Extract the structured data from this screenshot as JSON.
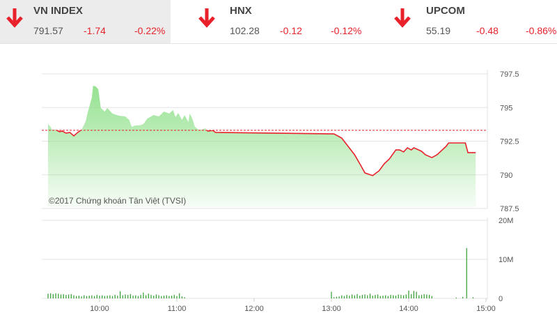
{
  "indices": [
    {
      "name": "VN INDEX",
      "value": "791.57",
      "change": "-1.74",
      "percent": "-0.22%",
      "direction": "down",
      "selected": true
    },
    {
      "name": "HNX",
      "value": "102.28",
      "change": "-0.12",
      "percent": "-0.12%",
      "direction": "down",
      "selected": false
    },
    {
      "name": "UPCOM",
      "value": "55.19",
      "change": "-0.48",
      "percent": "-0.86%",
      "direction": "down",
      "selected": false
    }
  ],
  "colors": {
    "down": "#e8212a",
    "line": "#e8212a",
    "fill": "#8fe08a",
    "volume": "#2e9a2e",
    "reference": "#e8212a"
  },
  "chart_data": [
    {
      "type": "line",
      "title": "",
      "watermark": "©2017 Chứng khoán Tân Việt (TVSI)",
      "reference": 793.31,
      "ylim": [
        787.5,
        797.5
      ],
      "yticks": [
        "797.5",
        "795",
        "792.5",
        "790",
        "787.5"
      ],
      "ytick_values": [
        797.5,
        795,
        792.5,
        790,
        787.5
      ],
      "xlim": [
        "09:15",
        "15:00"
      ],
      "grid": true,
      "points": [
        [
          "09:20",
          793.77
        ],
        [
          "09:22",
          793.56
        ],
        [
          "09:23",
          793.35
        ],
        [
          "09:26",
          793.35
        ],
        [
          "09:29",
          793.2
        ],
        [
          "09:31",
          793.25
        ],
        [
          "09:34",
          793.1
        ],
        [
          "09:37",
          793.15
        ],
        [
          "09:40",
          792.89
        ],
        [
          "09:43",
          793.15
        ],
        [
          "09:46",
          793.35
        ],
        [
          "09:49",
          793.92
        ],
        [
          "09:51",
          794.7
        ],
        [
          "09:54",
          795.74
        ],
        [
          "09:55",
          796.62
        ],
        [
          "09:57",
          796.57
        ],
        [
          "09:59",
          796.36
        ],
        [
          "10:01",
          794.97
        ],
        [
          "10:04",
          794.7
        ],
        [
          "10:06",
          794.97
        ],
        [
          "10:10",
          794.55
        ],
        [
          "10:15",
          794.39
        ],
        [
          "10:20",
          794.34
        ],
        [
          "10:23",
          794.08
        ],
        [
          "10:25",
          793.56
        ],
        [
          "10:28",
          793.67
        ],
        [
          "10:31",
          793.67
        ],
        [
          "10:34",
          793.77
        ],
        [
          "10:37",
          794.18
        ],
        [
          "10:42",
          794.44
        ],
        [
          "10:46",
          794.34
        ],
        [
          "10:50",
          794.7
        ],
        [
          "10:54",
          794.55
        ],
        [
          "10:57",
          794.81
        ],
        [
          "10:59",
          794.29
        ],
        [
          "11:01",
          794.6
        ],
        [
          "11:04",
          794.08
        ],
        [
          "11:06",
          794.44
        ],
        [
          "11:09",
          793.92
        ],
        [
          "11:10",
          794.55
        ],
        [
          "11:12",
          794.18
        ],
        [
          "11:14",
          793.56
        ],
        [
          "11:17",
          793.35
        ],
        [
          "11:19",
          793.35
        ],
        [
          "11:22",
          793.46
        ],
        [
          "11:24",
          793.25
        ],
        [
          "11:28",
          793.3
        ],
        [
          "11:30",
          793.15
        ],
        [
          "13:02",
          793.04
        ],
        [
          "13:08",
          792.73
        ],
        [
          "13:13",
          792.11
        ],
        [
          "13:18",
          791.49
        ],
        [
          "13:23",
          790.66
        ],
        [
          "13:26",
          790.14
        ],
        [
          "13:32",
          789.94
        ],
        [
          "13:37",
          790.3
        ],
        [
          "13:41",
          790.82
        ],
        [
          "13:45",
          791.18
        ],
        [
          "13:50",
          791.85
        ],
        [
          "13:53",
          791.85
        ],
        [
          "13:56",
          791.7
        ],
        [
          "13:59",
          792.01
        ],
        [
          "14:02",
          791.85
        ],
        [
          "14:04",
          792.01
        ],
        [
          "14:10",
          791.75
        ],
        [
          "14:13",
          791.49
        ],
        [
          "14:18",
          791.28
        ],
        [
          "14:22",
          791.49
        ],
        [
          "14:26",
          791.85
        ],
        [
          "14:29",
          792.11
        ],
        [
          "14:31",
          792.37
        ],
        [
          "14:44",
          792.37
        ],
        [
          "14:46",
          791.65
        ],
        [
          "14:52",
          791.65
        ]
      ]
    },
    {
      "type": "bar",
      "ylim": [
        0,
        20
      ],
      "yticks": [
        "20M",
        "10M",
        "0"
      ],
      "ytick_values": [
        20,
        10,
        0
      ],
      "xticks": [
        "10:00",
        "11:00",
        "12:00",
        "13:00",
        "14:00",
        "15:00"
      ],
      "unit": "M",
      "morning_start": "09:20",
      "afternoon_start": "13:00",
      "step_minutes": 2,
      "morning": [
        1.2,
        1.3,
        1.1,
        1.3,
        1.2,
        1.0,
        1.1,
        0.9,
        1.0,
        1.1,
        0.8,
        0.6,
        0.7,
        0.5,
        0.8,
        0.6,
        0.7,
        0.8,
        0.6,
        0.9,
        0.7,
        0.8,
        0.6,
        0.7,
        0.8,
        0.6,
        0.9,
        0.7,
        1.8,
        0.8,
        1.0,
        0.9,
        1.1,
        0.7,
        0.8,
        0.6,
        0.9,
        1.5,
        0.8,
        1.2,
        0.9,
        0.7,
        1.0,
        0.8,
        0.6,
        0.7,
        0.8,
        0.6,
        0.7,
        0.9,
        0.6,
        1.3,
        0.5,
        0.3
      ],
      "afternoon": [
        1.7,
        0.3,
        0.4,
        0.5,
        0.8,
        0.6,
        0.9,
        0.7,
        1.0,
        0.8,
        1.1,
        0.7,
        0.9,
        1.0,
        0.8,
        1.2,
        0.7,
        0.9,
        1.0,
        0.6,
        0.7,
        0.8,
        0.6,
        0.9,
        0.8,
        0.7,
        1.0,
        0.9,
        0.8,
        1.0,
        2.0,
        1.1,
        1.9,
        1.7,
        0.8,
        0.9,
        1.1,
        1.0,
        0.9,
        0.6
      ],
      "late": [
        [
          "14:37",
          0.2
        ],
        [
          "14:42",
          0.4
        ],
        [
          "14:45",
          12.9
        ],
        [
          "14:50",
          0.3
        ]
      ]
    }
  ]
}
